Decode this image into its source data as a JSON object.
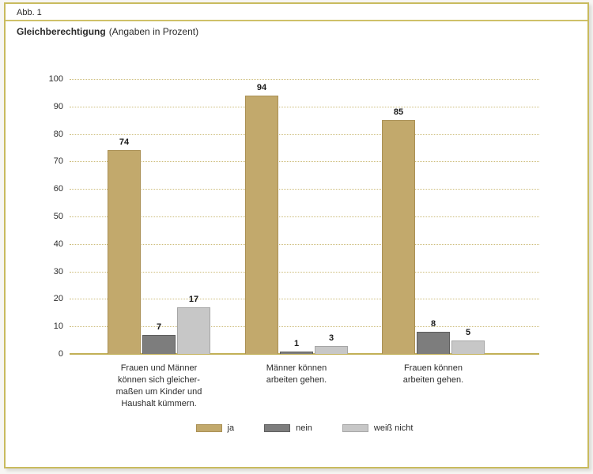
{
  "figure": {
    "label": "Abb. 1",
    "title": "Gleichberechtigung",
    "subtitle": "(Angaben in Prozent)"
  },
  "chart_data": {
    "type": "bar",
    "title": "Gleichberechtigung (Angaben in Prozent)",
    "categories": [
      [
        "Frauen und Männer",
        "können sich gleicher-",
        "maßen um Kinder und",
        "Haushalt kümmern."
      ],
      [
        "Männer können",
        "arbeiten gehen."
      ],
      [
        "Frauen können",
        "arbeiten gehen."
      ]
    ],
    "series": [
      {
        "name": "ja",
        "values": [
          74,
          94,
          85
        ],
        "color": "#c2a96c",
        "border": "#aa9054"
      },
      {
        "name": "nein",
        "values": [
          7,
          1,
          8
        ],
        "color": "#7d7d7d",
        "border": "#5e5e5e"
      },
      {
        "name": "weiß nicht",
        "values": [
          17,
          3,
          5
        ],
        "color": "#c7c7c7",
        "border": "#a6a6a6"
      }
    ],
    "ylabel": "",
    "xlabel": "",
    "ylim": [
      0,
      100
    ],
    "ytick_step": 10,
    "grid": "horizontal-dotted",
    "gridline_color": "#cdbd7b",
    "baseline_color": "#c2b056",
    "frame_border_color": "#c9bb5e",
    "legend_position": "bottom"
  }
}
